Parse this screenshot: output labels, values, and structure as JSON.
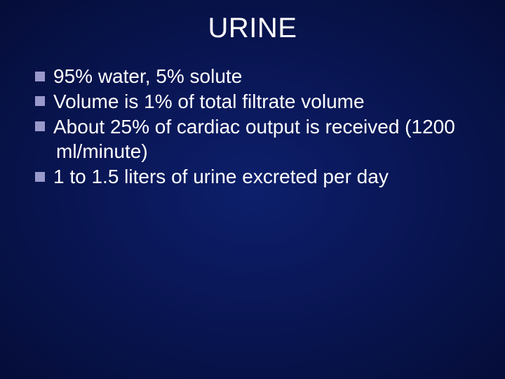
{
  "slide": {
    "title": "URINE",
    "background_gradient": {
      "center": "#0d1f6b",
      "mid": "#0a1758",
      "outer": "#050d38"
    },
    "text_color": "#ffffff",
    "bullet_color": "#9999cc",
    "title_fontsize": 40,
    "body_fontsize": 28,
    "bullets": [
      {
        "text": "95% water, 5% solute"
      },
      {
        "text": "Volume is 1% of total filtrate volume"
      },
      {
        "text": "About 25% of cardiac output is received (1200 ml/minute)"
      },
      {
        "text": "1 to 1.5 liters of urine excreted per day"
      }
    ]
  }
}
